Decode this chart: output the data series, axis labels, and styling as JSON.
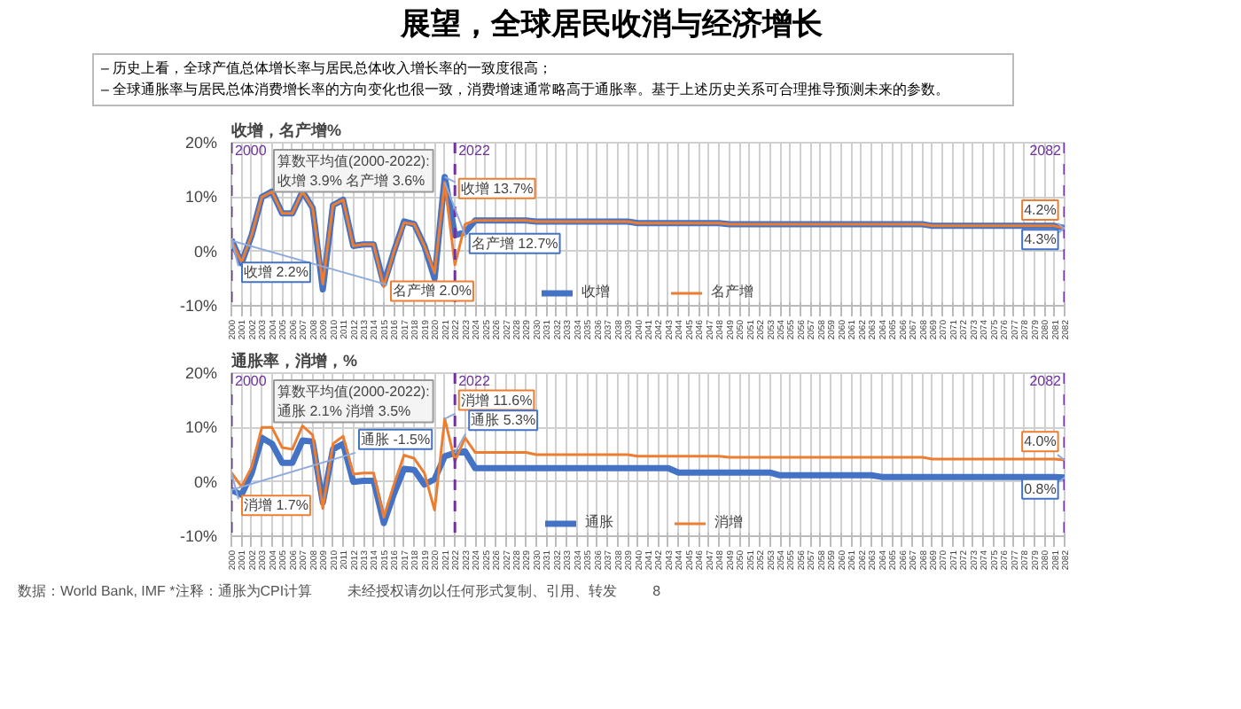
{
  "chart_data": [
    {
      "type": "other",
      "title": "展望，全球居民收消与经济增长",
      "subtitle": "– 历史上看，全球产值总体增长率与居民总体收入增长率的一致度很高；\n– 全球通胀率与居民总体消费增长率的方向变化也很一致，消费增速通常略高于通胀率。基于上述历史关系可合理推导预测未来的参数。"
    },
    {
      "type": "line",
      "ylabel": "收增，名产增%",
      "x": [
        2000,
        2001,
        2002,
        2003,
        2004,
        2005,
        2006,
        2007,
        2008,
        2009,
        2010,
        2011,
        2012,
        2013,
        2014,
        2015,
        2016,
        2017,
        2018,
        2019,
        2020,
        2021,
        2022,
        2023,
        2024,
        2025,
        2026,
        2027,
        2028,
        2029,
        2030,
        2031,
        2032,
        2033,
        2034,
        2035,
        2036,
        2037,
        2038,
        2039,
        2040,
        2041,
        2042,
        2043,
        2044,
        2045,
        2046,
        2047,
        2048,
        2049,
        2050,
        2051,
        2052,
        2053,
        2054,
        2055,
        2056,
        2057,
        2058,
        2059,
        2060,
        2061,
        2062,
        2063,
        2064,
        2065,
        2066,
        2067,
        2068,
        2069,
        2070,
        2071,
        2072,
        2073,
        2074,
        2075,
        2076,
        2077,
        2078,
        2079,
        2080,
        2081,
        2082
      ],
      "xlim": [
        2000,
        2082
      ],
      "xticks": [
        2000,
        2001,
        2002,
        2003,
        2004,
        2005,
        2006,
        2007,
        2008,
        2009,
        2010,
        2011,
        2012,
        2013,
        2014,
        2015,
        2016,
        2017,
        2018,
        2019,
        2020,
        2021,
        2022,
        2023,
        2024,
        2025,
        2026,
        2027,
        2028,
        2029,
        2030,
        2031,
        2032,
        2033,
        2034,
        2035,
        2036,
        2037,
        2038,
        2039,
        2040,
        2041,
        2042,
        2043,
        2044,
        2045,
        2046,
        2047,
        2048,
        2049,
        2050,
        2051,
        2052,
        2053,
        2054,
        2055,
        2056,
        2057,
        2058,
        2059,
        2060,
        2061,
        2062,
        2063,
        2064,
        2065,
        2066,
        2067,
        2068,
        2069,
        2070,
        2071,
        2072,
        2073,
        2074,
        2075,
        2076,
        2077,
        2078,
        2079,
        2080,
        2081,
        2082
      ],
      "ylim": [
        -10,
        20
      ],
      "yticks": [
        {
          "value": -10,
          "label": "-10%"
        },
        {
          "value": 0,
          "label": "0%"
        },
        {
          "value": 10,
          "label": "10%"
        },
        {
          "value": 20,
          "label": "20%"
        }
      ],
      "series": [
        {
          "name": "收增",
          "color": "#4472c4",
          "values": [
            2.2,
            -2.2,
            3,
            10,
            11,
            7,
            7,
            11,
            8,
            -7,
            8.5,
            9.5,
            1,
            1.3,
            1.3,
            -6,
            0,
            5.5,
            5,
            1,
            -5,
            13.7,
            3,
            3.5,
            5.7,
            5.7,
            5.7,
            5.7,
            5.7,
            5.7,
            5.5,
            5.5,
            5.5,
            5.5,
            5.5,
            5.5,
            5.5,
            5.5,
            5.5,
            5.5,
            5.2,
            5.2,
            5.2,
            5.2,
            5.2,
            5.2,
            5.2,
            5.2,
            5.2,
            5.0,
            5.0,
            5.0,
            5.0,
            5.0,
            5.0,
            5.0,
            5.0,
            5.0,
            5.0,
            5.0,
            5.0,
            5.0,
            5.0,
            5.0,
            5.0,
            5.0,
            5.0,
            5.0,
            5.0,
            4.7,
            4.7,
            4.7,
            4.7,
            4.7,
            4.7,
            4.7,
            4.7,
            4.7,
            4.7,
            4.7,
            4.7,
            4.7,
            4.3
          ]
        },
        {
          "name": "名产增",
          "color": "#ed7d31",
          "values": [
            2.0,
            -2,
            3,
            10,
            11,
            7,
            7,
            11,
            8,
            -6,
            8.5,
            9.5,
            1,
            1.3,
            1.3,
            -6.5,
            0,
            5.3,
            5,
            1,
            -4,
            12.7,
            -2.5,
            5,
            5.7,
            5.7,
            5.7,
            5.7,
            5.7,
            5.7,
            5.5,
            5.5,
            5.5,
            5.5,
            5.5,
            5.5,
            5.5,
            5.5,
            5.5,
            5.5,
            5.2,
            5.2,
            5.2,
            5.2,
            5.2,
            5.2,
            5.2,
            5.2,
            5.2,
            5.0,
            5.0,
            5.0,
            5.0,
            5.0,
            5.0,
            5.0,
            5.0,
            5.0,
            5.0,
            5.0,
            5.0,
            5.0,
            5.0,
            5.0,
            5.0,
            5.0,
            5.0,
            5.0,
            5.0,
            4.7,
            4.7,
            4.7,
            4.7,
            4.7,
            4.7,
            4.7,
            4.7,
            4.7,
            4.7,
            4.7,
            4.7,
            4.7,
            4.2
          ]
        }
      ],
      "ref_lines": [
        {
          "axis": "x",
          "value": 2000,
          "label": "2000",
          "color": "#7030a0",
          "line_style": "dashed"
        },
        {
          "axis": "x",
          "value": 2022,
          "label": "2022",
          "color": "#7030a0",
          "line_style": "dashed"
        },
        {
          "axis": "x",
          "value": 2082,
          "label": "2082",
          "color": "#7030a0",
          "line_style": "dashed"
        }
      ],
      "annotations": [
        "算数平均值(2000-2022):\n收增 3.9% 名产增 3.6%",
        {
          "text": "名产增 2.0%",
          "x": 2000,
          "y": 2.0
        },
        {
          "text": "收增 2.2%",
          "x": 2000,
          "y": 2.2
        },
        {
          "text": "收增 13.7%",
          "x": 2021,
          "y": 13.7
        },
        {
          "text": "名产增 12.7%",
          "x": 2021,
          "y": 12.7
        },
        {
          "text": "4.2%",
          "x": 2082,
          "y": 4.2
        },
        {
          "text": "4.3%",
          "x": 2082,
          "y": 4.3
        }
      ],
      "grid": true,
      "legend": "bottom",
      "line_style": "solid"
    },
    {
      "type": "line",
      "ylabel": "通胀率，消增，%",
      "x": [
        2000,
        2001,
        2002,
        2003,
        2004,
        2005,
        2006,
        2007,
        2008,
        2009,
        2010,
        2011,
        2012,
        2013,
        2014,
        2015,
        2016,
        2017,
        2018,
        2019,
        2020,
        2021,
        2022,
        2023,
        2024,
        2025,
        2026,
        2027,
        2028,
        2029,
        2030,
        2031,
        2032,
        2033,
        2034,
        2035,
        2036,
        2037,
        2038,
        2039,
        2040,
        2041,
        2042,
        2043,
        2044,
        2045,
        2046,
        2047,
        2048,
        2049,
        2050,
        2051,
        2052,
        2053,
        2054,
        2055,
        2056,
        2057,
        2058,
        2059,
        2060,
        2061,
        2062,
        2063,
        2064,
        2065,
        2066,
        2067,
        2068,
        2069,
        2070,
        2071,
        2072,
        2073,
        2074,
        2075,
        2076,
        2077,
        2078,
        2079,
        2080,
        2081,
        2082
      ],
      "xlim": [
        2000,
        2082
      ],
      "xticks": [
        2000,
        2001,
        2002,
        2003,
        2004,
        2005,
        2006,
        2007,
        2008,
        2009,
        2010,
        2011,
        2012,
        2013,
        2014,
        2015,
        2016,
        2017,
        2018,
        2019,
        2020,
        2021,
        2022,
        2023,
        2024,
        2025,
        2026,
        2027,
        2028,
        2029,
        2030,
        2031,
        2032,
        2033,
        2034,
        2035,
        2036,
        2037,
        2038,
        2039,
        2040,
        2041,
        2042,
        2043,
        2044,
        2045,
        2046,
        2047,
        2048,
        2049,
        2050,
        2051,
        2052,
        2053,
        2054,
        2055,
        2056,
        2057,
        2058,
        2059,
        2060,
        2061,
        2062,
        2063,
        2064,
        2065,
        2066,
        2067,
        2068,
        2069,
        2070,
        2071,
        2072,
        2073,
        2074,
        2075,
        2076,
        2077,
        2078,
        2079,
        2080,
        2081,
        2082
      ],
      "ylim": [
        -10,
        20
      ],
      "yticks": [
        {
          "value": -10,
          "label": "-10%"
        },
        {
          "value": 0,
          "label": "0%"
        },
        {
          "value": 10,
          "label": "10%"
        },
        {
          "value": 20,
          "label": "20%"
        }
      ],
      "series": [
        {
          "name": "通胀",
          "color": "#4472c4",
          "values": [
            -1.5,
            -2.4,
            1.6,
            8.1,
            7,
            3.5,
            3.5,
            7.6,
            7.4,
            -3.8,
            6,
            7,
            0,
            0.2,
            0.2,
            -7.6,
            -2.2,
            2.4,
            2.2,
            -0.5,
            0.5,
            4.7,
            5.3,
            5.6,
            2.5,
            2.5,
            2.5,
            2.5,
            2.5,
            2.5,
            2.5,
            2.5,
            2.5,
            2.5,
            2.5,
            2.5,
            2.5,
            2.5,
            2.5,
            2.5,
            2.5,
            2.5,
            2.5,
            2.5,
            1.7,
            1.7,
            1.7,
            1.7,
            1.7,
            1.7,
            1.7,
            1.7,
            1.7,
            1.7,
            1.2,
            1.2,
            1.2,
            1.2,
            1.2,
            1.2,
            1.2,
            1.2,
            1.2,
            1.2,
            0.9,
            0.9,
            0.9,
            0.9,
            0.9,
            0.9,
            0.9,
            0.9,
            0.9,
            0.9,
            0.9,
            0.9,
            0.9,
            0.9,
            0.9,
            0.9,
            0.9,
            0.9,
            0.8
          ]
        },
        {
          "name": "消增",
          "color": "#ed7d31",
          "values": [
            1.7,
            -0.9,
            2.7,
            10,
            10,
            6.3,
            6,
            10.3,
            8.6,
            -4.9,
            7,
            8.4,
            1.4,
            1.6,
            1.6,
            -6.5,
            -0.5,
            4.9,
            4.3,
            1.6,
            -5.2,
            11.6,
            3.8,
            8.1,
            5.4,
            5.4,
            5.4,
            5.4,
            5.4,
            5.4,
            5.0,
            5.0,
            5.0,
            5.0,
            5.0,
            5.0,
            5.0,
            5.0,
            5.0,
            5.0,
            4.7,
            4.7,
            4.7,
            4.7,
            4.7,
            4.7,
            4.7,
            4.7,
            4.7,
            4.5,
            4.5,
            4.5,
            4.5,
            4.5,
            4.5,
            4.5,
            4.5,
            4.5,
            4.5,
            4.5,
            4.5,
            4.5,
            4.5,
            4.5,
            4.5,
            4.5,
            4.5,
            4.5,
            4.5,
            4.2,
            4.2,
            4.2,
            4.2,
            4.2,
            4.2,
            4.2,
            4.2,
            4.2,
            4.2,
            4.2,
            4.2,
            4.2,
            4.0
          ]
        }
      ],
      "ref_lines": [
        {
          "axis": "x",
          "value": 2000,
          "label": "2000",
          "color": "#7030a0",
          "line_style": "dashed"
        },
        {
          "axis": "x",
          "value": 2022,
          "label": "2022",
          "color": "#7030a0",
          "line_style": "dashed"
        },
        {
          "axis": "x",
          "value": 2082,
          "label": "2082",
          "color": "#7030a0",
          "line_style": "dashed"
        }
      ],
      "annotations": [
        "算数平均值(2000-2022):\n通胀 2.1% 消增 3.5%",
        {
          "text": "消增 1.7%",
          "x": 2000,
          "y": 1.7
        },
        {
          "text": "通胀 -1.5%",
          "x": 2000,
          "y": -1.5
        },
        {
          "text": "消增 11.6%",
          "x": 2021,
          "y": 11.6
        },
        {
          "text": "通胀 5.3%",
          "x": 2022,
          "y": 5.3
        },
        {
          "text": "4.0%",
          "x": 2082,
          "y": 4.0
        },
        {
          "text": "0.8%",
          "x": 2082,
          "y": 0.8
        },
        "数据：World Bank, IMF *注释：通胀为CPI计算",
        "未经授权请勿以任何形式复制、引用、转发",
        "8"
      ],
      "grid": true,
      "legend": "bottom",
      "line_style": "solid"
    }
  ]
}
